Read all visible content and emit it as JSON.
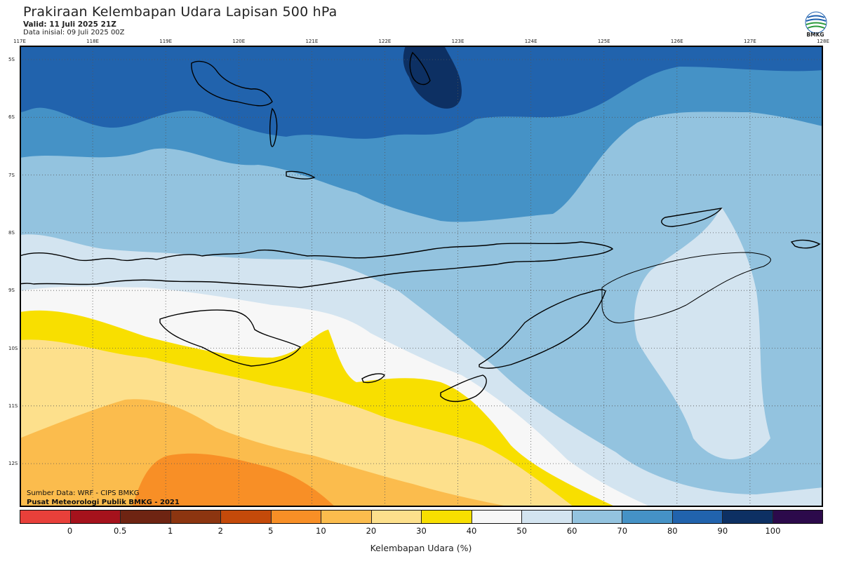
{
  "header": {
    "title": "Prakiraan Kelembapan Udara Lapisan 500 hPa",
    "valid": "Valid: 11 Juli 2025 21Z",
    "init": "Data inisial: 09 Juli 2025 00Z"
  },
  "logo": {
    "text": "BMKG",
    "icon": "bmkg-logo-icon"
  },
  "map": {
    "lon_labels": [
      "117E",
      "118E",
      "119E",
      "120E",
      "121E",
      "122E",
      "123E",
      "124E",
      "125E",
      "126E",
      "127E",
      "128E"
    ],
    "lat_labels": [
      "5S",
      "6S",
      "7S",
      "8S",
      "9S",
      "10S",
      "11S",
      "12S"
    ],
    "grid": true,
    "region": "Nusa Tenggara"
  },
  "credits": {
    "source": "Sumber Data: WRF - CIPS BMKG",
    "publisher": "Pusat Meteorologi Publik BMKG - 2021"
  },
  "colorbar": {
    "title": "Kelembapan Udara (%)",
    "ticks": [
      "0",
      "0.5",
      "1",
      "2",
      "5",
      "10",
      "20",
      "30",
      "40",
      "50",
      "60",
      "70",
      "80",
      "90",
      "100"
    ],
    "colors": [
      "#e8403a",
      "#a5121c",
      "#6e2412",
      "#8c3510",
      "#c44a0a",
      "#f88f26",
      "#fbbc4d",
      "#fde08c",
      "#f8df00",
      "#f7f7f7",
      "#d3e4f0",
      "#93c3df",
      "#4592c6",
      "#2163ad",
      "#0d3063",
      "#2c0a4b"
    ]
  }
}
